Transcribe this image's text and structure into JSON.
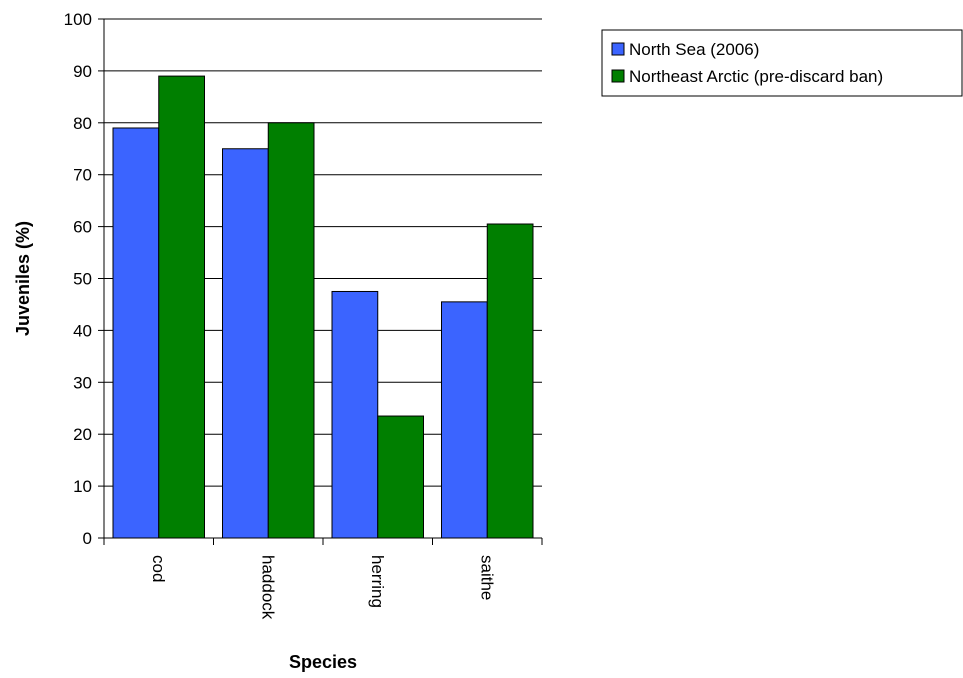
{
  "chart_data": {
    "type": "bar",
    "categories": [
      "cod",
      "haddock",
      "herring",
      "saithe"
    ],
    "series": [
      {
        "name": "North Sea (2006)",
        "color": "#3b64ff",
        "values": [
          79,
          75,
          47.5,
          45.5
        ]
      },
      {
        "name": "Northeast Arctic (pre-discard ban)",
        "color": "#007f00",
        "values": [
          89,
          80,
          23.5,
          60.5
        ]
      }
    ],
    "title": "",
    "xlabel": "Species",
    "ylabel": "Juveniles (%)",
    "ylim": [
      0,
      100
    ],
    "yticks": [
      0,
      10,
      20,
      30,
      40,
      50,
      60,
      70,
      80,
      90,
      100
    ],
    "grid": "horizontal",
    "legend_position": "top-right"
  }
}
